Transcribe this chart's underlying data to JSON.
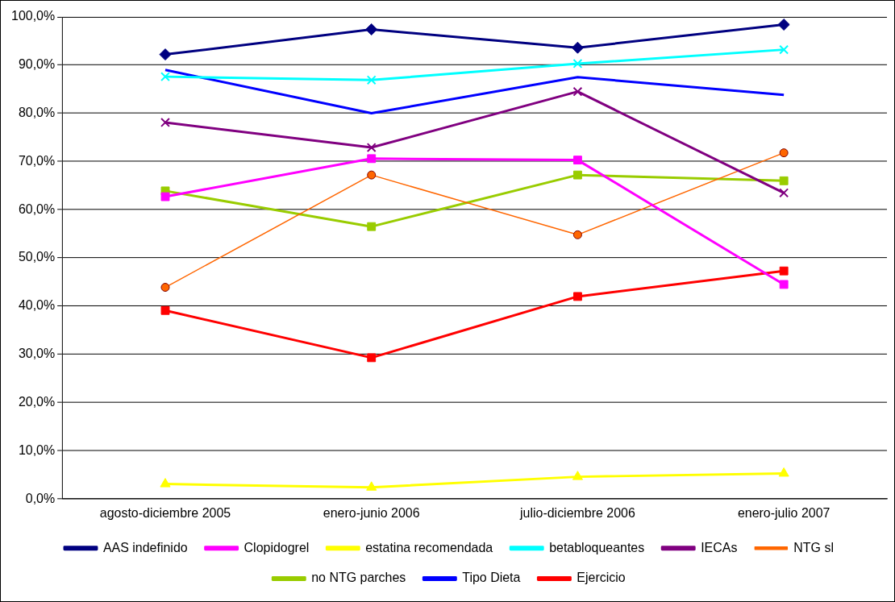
{
  "chart_data": {
    "type": "line",
    "categories": [
      "agosto-diciembre 2005",
      "enero-junio 2006",
      "julio-diciembre 2006",
      "enero-julio 2007"
    ],
    "ylim": [
      0,
      100
    ],
    "yticks": [
      {
        "value": 0,
        "label": "0,0%"
      },
      {
        "value": 10,
        "label": "10,0%"
      },
      {
        "value": 20,
        "label": "20,0%"
      },
      {
        "value": 30,
        "label": "30,0%"
      },
      {
        "value": 40,
        "label": "40,0%"
      },
      {
        "value": 50,
        "label": "50,0%"
      },
      {
        "value": 60,
        "label": "60,0%"
      },
      {
        "value": 70,
        "label": "70,0%"
      },
      {
        "value": 80,
        "label": "80,0%"
      },
      {
        "value": 90,
        "label": "90,0%"
      },
      {
        "value": 100,
        "label": "100,0%"
      }
    ],
    "grid": "y",
    "legend": "bottom",
    "series": [
      {
        "name": "AAS indefinido",
        "color": "#000080",
        "marker": "diamond",
        "values": [
          92.2,
          97.4,
          93.6,
          98.4
        ]
      },
      {
        "name": "Clopidogrel",
        "color": "#ff00ff",
        "marker": "square",
        "values": [
          62.7,
          70.6,
          70.3,
          44.5
        ]
      },
      {
        "name": "estatina recomendada",
        "color": "#ffff00",
        "marker": "triangle",
        "values": [
          3.1,
          2.4,
          4.6,
          5.3
        ]
      },
      {
        "name": "betabloqueantes",
        "color": "#00ffff",
        "marker": "cross",
        "values": [
          87.6,
          86.9,
          90.3,
          93.2
        ]
      },
      {
        "name": "IECAs",
        "color": "#800080",
        "marker": "cross",
        "values": [
          78.1,
          72.9,
          84.5,
          63.5
        ]
      },
      {
        "name": "NTG sl",
        "color": "#ff6600",
        "marker": "circle",
        "values": [
          43.9,
          67.2,
          54.8,
          71.8
        ]
      },
      {
        "name": "no NTG parches",
        "color": "#99cc00",
        "marker": "square",
        "values": [
          63.9,
          56.5,
          67.2,
          66.0
        ]
      },
      {
        "name": "Tipo Dieta",
        "color": "#0000ff",
        "marker": "none",
        "values": [
          89.0,
          80.0,
          87.5,
          83.8
        ]
      },
      {
        "name": "Ejercicio",
        "color": "#ff0000",
        "marker": "square",
        "values": [
          39.1,
          29.3,
          42.0,
          47.3
        ]
      }
    ]
  }
}
